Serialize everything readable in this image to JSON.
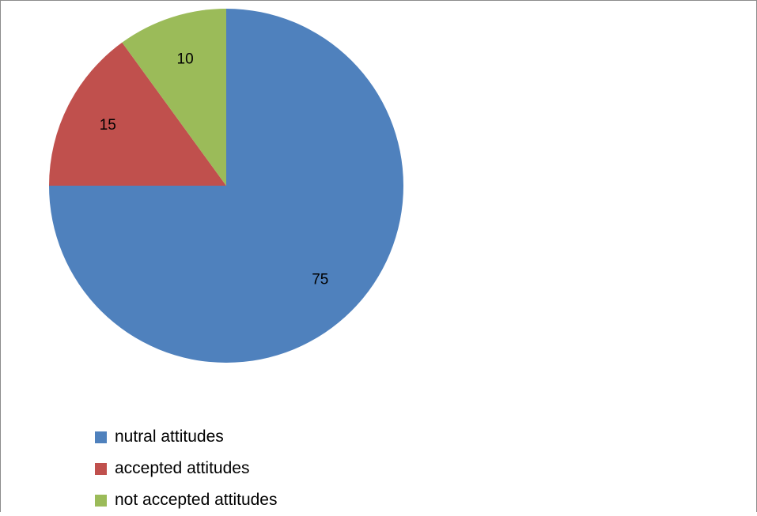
{
  "chart_data": {
    "type": "pie",
    "title": "",
    "start_angle": "12 o'clock, clockwise",
    "legend_position": "bottom-left",
    "slices": [
      {
        "name": "nutral attitudes",
        "value": 75,
        "label": "75",
        "color": "#4f81bd"
      },
      {
        "name": "accepted attitudes",
        "value": 15,
        "label": "15",
        "color": "#c0504d"
      },
      {
        "name": "not accepted attitudes",
        "value": 10,
        "label": "10",
        "color": "#9bbb59"
      }
    ]
  }
}
